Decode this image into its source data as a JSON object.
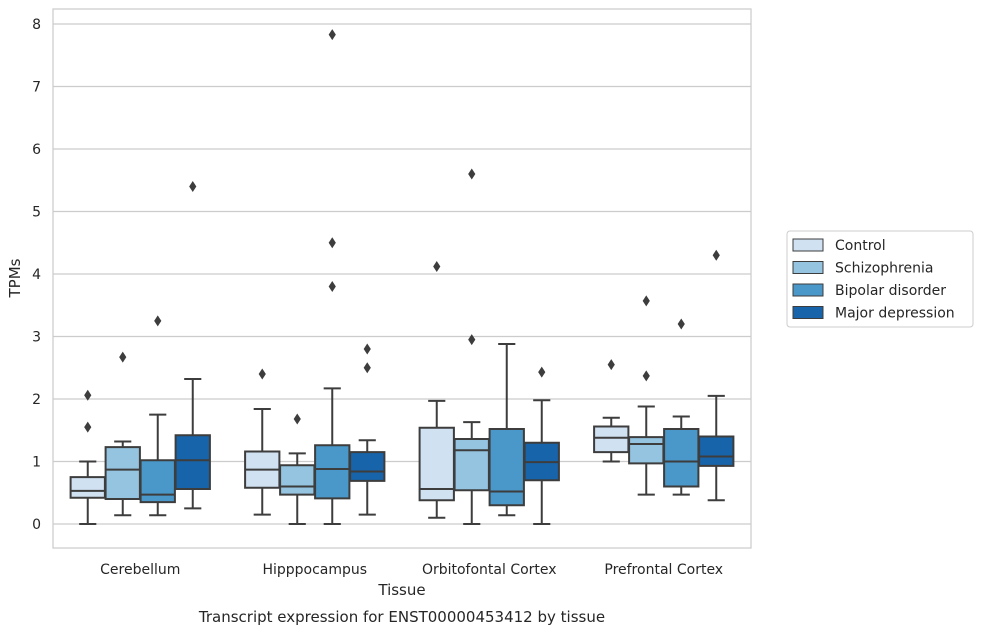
{
  "caption": "Transcript expression for ENST00000453412 by tissue",
  "chart_data": {
    "type": "box",
    "xlabel": "Tissue",
    "ylabel": "TPMs",
    "ylim": [
      -0.38,
      8.22
    ],
    "yticks": [
      0,
      1,
      2,
      3,
      4,
      5,
      6,
      7,
      8
    ],
    "grid": "horizontal",
    "legend_position": "right",
    "categories": [
      "Cerebellum",
      "Hipppocampus",
      "Orbitofontal Cortex",
      "Prefrontal Cortex"
    ],
    "series": [
      {
        "name": "Control",
        "color": "#d0e1f2",
        "boxes": [
          {
            "whisker_low": 0.0,
            "q1": 0.42,
            "median": 0.53,
            "q3": 0.75,
            "whisker_high": 1.0,
            "outliers": [
              1.55,
              2.06
            ]
          },
          {
            "whisker_low": 0.15,
            "q1": 0.58,
            "median": 0.87,
            "q3": 1.16,
            "whisker_high": 1.84,
            "outliers": [
              2.4
            ]
          },
          {
            "whisker_low": 0.1,
            "q1": 0.38,
            "median": 0.56,
            "q3": 1.54,
            "whisker_high": 1.97,
            "outliers": [
              4.12
            ]
          },
          {
            "whisker_low": 1.0,
            "q1": 1.15,
            "median": 1.38,
            "q3": 1.56,
            "whisker_high": 1.7,
            "outliers": [
              2.55
            ]
          }
        ]
      },
      {
        "name": "Schizophrenia",
        "color": "#94c4df",
        "boxes": [
          {
            "whisker_low": 0.14,
            "q1": 0.4,
            "median": 0.87,
            "q3": 1.23,
            "whisker_high": 1.32,
            "outliers": [
              2.67
            ]
          },
          {
            "whisker_low": 0.0,
            "q1": 0.47,
            "median": 0.6,
            "q3": 0.94,
            "whisker_high": 1.13,
            "outliers": [
              1.68
            ]
          },
          {
            "whisker_low": 0.0,
            "q1": 0.54,
            "median": 1.18,
            "q3": 1.36,
            "whisker_high": 1.63,
            "outliers": [
              2.95,
              5.6
            ]
          },
          {
            "whisker_low": 0.47,
            "q1": 0.97,
            "median": 1.28,
            "q3": 1.39,
            "whisker_high": 1.88,
            "outliers": [
              2.37,
              3.57
            ]
          }
        ]
      },
      {
        "name": "Bipolar disorder",
        "color": "#4a98c9",
        "boxes": [
          {
            "whisker_low": 0.14,
            "q1": 0.35,
            "median": 0.47,
            "q3": 1.02,
            "whisker_high": 1.75,
            "outliers": [
              3.25
            ]
          },
          {
            "whisker_low": 0.0,
            "q1": 0.41,
            "median": 0.88,
            "q3": 1.26,
            "whisker_high": 2.17,
            "outliers": [
              3.8,
              4.5,
              7.83
            ]
          },
          {
            "whisker_low": 0.14,
            "q1": 0.3,
            "median": 0.52,
            "q3": 1.52,
            "whisker_high": 2.88,
            "outliers": []
          },
          {
            "whisker_low": 0.47,
            "q1": 0.6,
            "median": 1.0,
            "q3": 1.52,
            "whisker_high": 1.72,
            "outliers": [
              3.2
            ]
          }
        ]
      },
      {
        "name": "Major depression",
        "color": "#1764ab",
        "boxes": [
          {
            "whisker_low": 0.25,
            "q1": 0.56,
            "median": 1.02,
            "q3": 1.42,
            "whisker_high": 2.32,
            "outliers": [
              5.4
            ]
          },
          {
            "whisker_low": 0.15,
            "q1": 0.69,
            "median": 0.84,
            "q3": 1.15,
            "whisker_high": 1.34,
            "outliers": [
              2.5,
              2.8
            ]
          },
          {
            "whisker_low": 0.0,
            "q1": 0.7,
            "median": 0.99,
            "q3": 1.3,
            "whisker_high": 1.98,
            "outliers": [
              2.43
            ]
          },
          {
            "whisker_low": 0.38,
            "q1": 0.93,
            "median": 1.08,
            "q3": 1.4,
            "whisker_high": 2.05,
            "outliers": [
              4.3
            ]
          }
        ]
      }
    ]
  }
}
